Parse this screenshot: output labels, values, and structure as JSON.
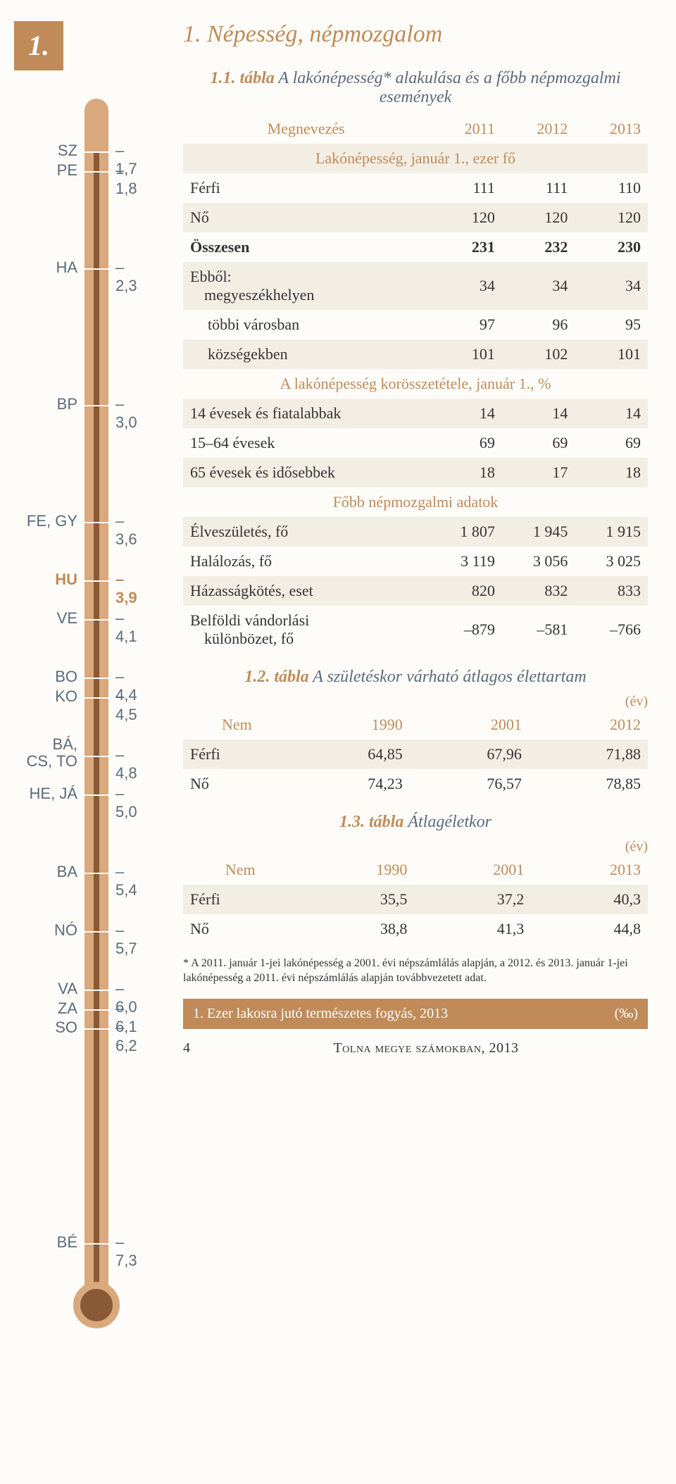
{
  "section_number": "1.",
  "main_title": "1. Népesség, népmozgalom",
  "thermometer": {
    "min": -7.5,
    "max": -1.5,
    "points": [
      {
        "label": "SZ",
        "value": -1.7,
        "side": "left",
        "hl": false
      },
      {
        "label": "PE",
        "value": -1.8,
        "side": "left",
        "hl": false
      },
      {
        "label": "HA",
        "value": -2.3,
        "side": "left",
        "hl": false
      },
      {
        "label": "BP",
        "value": -3.0,
        "side": "left",
        "hl": false
      },
      {
        "label": "FE, GY",
        "value": -3.6,
        "side": "left",
        "hl": false
      },
      {
        "label": "HU",
        "value": -3.9,
        "side": "left",
        "hl": true
      },
      {
        "label": "VE",
        "value": -4.1,
        "side": "left",
        "hl": false
      },
      {
        "label": "BO",
        "value": -4.4,
        "side": "left",
        "hl": false
      },
      {
        "label": "KO",
        "value": -4.5,
        "side": "left",
        "hl": false
      },
      {
        "label": "BÁ,\nCS, TO",
        "value": -4.8,
        "side": "left",
        "hl": false
      },
      {
        "label": "HE, JÁ",
        "value": -5.0,
        "side": "left",
        "hl": false
      },
      {
        "label": "BA",
        "value": -5.4,
        "side": "left",
        "hl": false
      },
      {
        "label": "NÓ",
        "value": -5.7,
        "side": "left",
        "hl": false
      },
      {
        "label": "VA",
        "value": -6.0,
        "side": "left",
        "hl": false
      },
      {
        "label": "ZA",
        "value": -6.1,
        "side": "left",
        "hl": false
      },
      {
        "label": "SO",
        "value": -6.2,
        "side": "left",
        "hl": false
      },
      {
        "label": "BÉ",
        "value": -7.3,
        "side": "left",
        "hl": false
      }
    ],
    "value_labels": [
      {
        "value": -1.7,
        "text": "–1,7"
      },
      {
        "value": -1.8,
        "text": "–1,8"
      },
      {
        "value": -2.3,
        "text": "–2,3"
      },
      {
        "value": -3.0,
        "text": "–3,0"
      },
      {
        "value": -3.6,
        "text": "–3,6"
      },
      {
        "value": -3.9,
        "text": "–3,9",
        "hl": true
      },
      {
        "value": -4.1,
        "text": "–4,1"
      },
      {
        "value": -4.4,
        "text": "–4,4"
      },
      {
        "value": -4.5,
        "text": "–4,5"
      },
      {
        "value": -4.8,
        "text": "–4,8"
      },
      {
        "value": -5.0,
        "text": "–5,0"
      },
      {
        "value": -5.4,
        "text": "–5,4"
      },
      {
        "value": -5.7,
        "text": "–5,7"
      },
      {
        "value": -6.0,
        "text": "–6,0"
      },
      {
        "value": -6.1,
        "text": "–6,1"
      },
      {
        "value": -6.2,
        "text": "–6,2"
      },
      {
        "value": -7.3,
        "text": "–7,3"
      }
    ]
  },
  "table1": {
    "num": "1.1. tábla",
    "title": " A lakónépesség* alakulása és a főbb népmozgalmi események",
    "header": [
      "Megnevezés",
      "2011",
      "2012",
      "2013"
    ],
    "sub1": "Lakónépesség, január 1., ezer fő",
    "rows1": [
      {
        "label": "Férfi",
        "v": [
          "111",
          "111",
          "110"
        ]
      },
      {
        "label": "Nő",
        "v": [
          "120",
          "120",
          "120"
        ]
      },
      {
        "label": "Összesen",
        "v": [
          "231",
          "232",
          "230"
        ],
        "bold": true
      },
      {
        "label": "Ebből:\n  megyeszékhelyen",
        "v": [
          "34",
          "34",
          "34"
        ],
        "indent": true,
        "pre": "Ebből:"
      },
      {
        "label": "többi városban",
        "v": [
          "97",
          "96",
          "95"
        ],
        "indent": true
      },
      {
        "label": "községekben",
        "v": [
          "101",
          "102",
          "101"
        ],
        "indent": true
      }
    ],
    "sub2": "A lakónépesség korösszetétele, január 1., %",
    "rows2": [
      {
        "label": "14 évesek és fiatalabbak",
        "v": [
          "14",
          "14",
          "14"
        ]
      },
      {
        "label": "15–64 évesek",
        "v": [
          "69",
          "69",
          "69"
        ]
      },
      {
        "label": "65 évesek és idősebbek",
        "v": [
          "18",
          "17",
          "18"
        ]
      }
    ],
    "sub3": "Főbb népmozgalmi adatok",
    "rows3": [
      {
        "label": "Élveszületés, fő",
        "v": [
          "1 807",
          "1 945",
          "1 915"
        ]
      },
      {
        "label": "Halálozás, fő",
        "v": [
          "3 119",
          "3 056",
          "3 025"
        ]
      },
      {
        "label": "Házasságkötés, eset",
        "v": [
          "820",
          "832",
          "833"
        ]
      },
      {
        "label": "Belföldi vándorlási\n  különbözet, fő",
        "v": [
          "–879",
          "–581",
          "–766"
        ]
      }
    ]
  },
  "table2": {
    "num": "1.2. tábla",
    "title": " A születéskor várható átlagos élettartam",
    "unit": "(év)",
    "header": [
      "Nem",
      "1990",
      "2001",
      "2012"
    ],
    "rows": [
      {
        "label": "Férfi",
        "v": [
          "64,85",
          "67,96",
          "71,88"
        ]
      },
      {
        "label": "Nő",
        "v": [
          "74,23",
          "76,57",
          "78,85"
        ]
      }
    ]
  },
  "table3": {
    "num": "1.3. tábla",
    "title": " Átlagéletkor",
    "unit": "(év)",
    "header": [
      "Nem",
      "1990",
      "2001",
      "2013"
    ],
    "rows": [
      {
        "label": "Férfi",
        "v": [
          "35,5",
          "37,2",
          "40,3"
        ]
      },
      {
        "label": "Nő",
        "v": [
          "38,8",
          "41,3",
          "44,8"
        ]
      }
    ]
  },
  "footnote": "* A 2011. január 1-jei lakónépesség a 2001. évi népszámlálás alapján, a 2012. és 2013. január 1-jei lakónépesség a 2011. évi népszámlálás alapján továbbvezetett adat.",
  "bottom_bar": {
    "left": "1. Ezer lakosra jutó természetes fogyás, 2013",
    "right": "(‰)"
  },
  "footer": {
    "page": "4",
    "source": "Tolna megye számokban, 2013"
  }
}
